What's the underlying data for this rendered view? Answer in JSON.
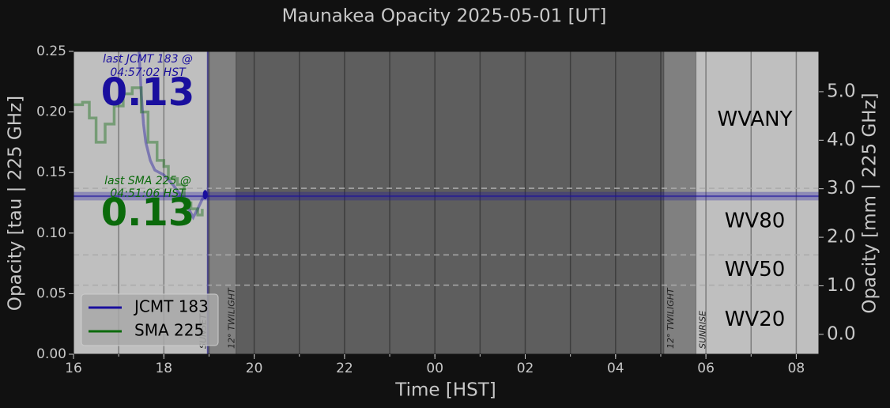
{
  "chart_data": {
    "type": "line",
    "title": "Maunakea Opacity 2025-05-01 [UT]",
    "x_label": "Time [HST]",
    "y_label": "Opacity [tau | 225 GHz]",
    "y2_label": "Opacity [mm | 225 GHz]",
    "xlim": [
      16,
      32.5
    ],
    "xticks": [
      16,
      18,
      20,
      22,
      {
        "value": 24,
        "label": "00"
      },
      {
        "value": 26,
        "label": "02"
      },
      {
        "value": 28,
        "label": "04"
      },
      {
        "value": 30,
        "label": "06"
      },
      {
        "value": 32,
        "label": "08"
      }
    ],
    "ylim": [
      0,
      0.25
    ],
    "yticks": [
      {
        "value": 0,
        "label": "0.00"
      },
      {
        "value": 0.05,
        "label": "0.05"
      },
      {
        "value": 0.1,
        "label": "0.10"
      },
      {
        "value": 0.15,
        "label": "0.15"
      },
      {
        "value": 0.2,
        "label": "0.20"
      },
      {
        "value": 0.25,
        "label": "0.25"
      }
    ],
    "y2lim": [
      -0.41,
      5.83
    ],
    "y2ticks": [
      {
        "value": 0,
        "label": "0.0"
      },
      {
        "value": 1,
        "label": "1.0"
      },
      {
        "value": 2,
        "label": "2.0"
      },
      {
        "value": 3,
        "label": "3.0"
      },
      {
        "value": 4,
        "label": "4.0"
      },
      {
        "value": 5,
        "label": "5.0"
      }
    ],
    "grid": true,
    "legend": "lower left",
    "events": [
      {
        "name": "SUNSET",
        "x": 18.97
      },
      {
        "name": "12° TWILIGHT",
        "x": 19.6
      },
      {
        "name": "12° TWILIGHT",
        "x": 29.07
      },
      {
        "name": "SUNRISE",
        "x": 29.78
      }
    ],
    "wv_lines": [
      0.057,
      0.082,
      0.137
    ],
    "wv_bands": [
      "WV20",
      "WV50",
      "WV80",
      "WVANY"
    ],
    "reference_line": {
      "x": 18.97,
      "y": 0.1305,
      "band": [
        0.127,
        0.134
      ]
    },
    "series": [
      {
        "name": "JCMT 183",
        "color": "#1a0f9e",
        "drawstyle": "line",
        "x": [
          17.45,
          17.5,
          17.55,
          17.6,
          17.7,
          17.8,
          18.0,
          18.2,
          18.4,
          18.55,
          18.65,
          18.75,
          18.85,
          18.95
        ],
        "values": [
          0.25,
          0.215,
          0.19,
          0.175,
          0.16,
          0.152,
          0.148,
          0.14,
          0.13,
          0.12,
          0.113,
          0.12,
          0.128,
          0.133
        ]
      },
      {
        "name": "SMA 225",
        "color": "#0b6a0b",
        "drawstyle": "steps",
        "x": [
          16.0,
          16.2,
          16.35,
          16.5,
          16.7,
          16.9,
          17.1,
          17.3,
          17.5,
          17.65,
          17.85,
          18.0,
          18.1,
          18.3,
          18.45,
          18.6,
          18.75,
          18.85
        ],
        "values": [
          0.206,
          0.208,
          0.195,
          0.175,
          0.19,
          0.205,
          0.215,
          0.22,
          0.2,
          0.175,
          0.16,
          0.155,
          0.145,
          0.14,
          0.125,
          0.12,
          0.115,
          0.12
        ]
      }
    ],
    "annotations": [
      {
        "lines": [
          "last JCMT 183 @",
          "04:57:02 HST"
        ],
        "value": 0.13
      },
      {
        "lines": [
          "last SMA 225 @",
          "04:51:06 HST"
        ],
        "value": 0.13
      }
    ]
  }
}
